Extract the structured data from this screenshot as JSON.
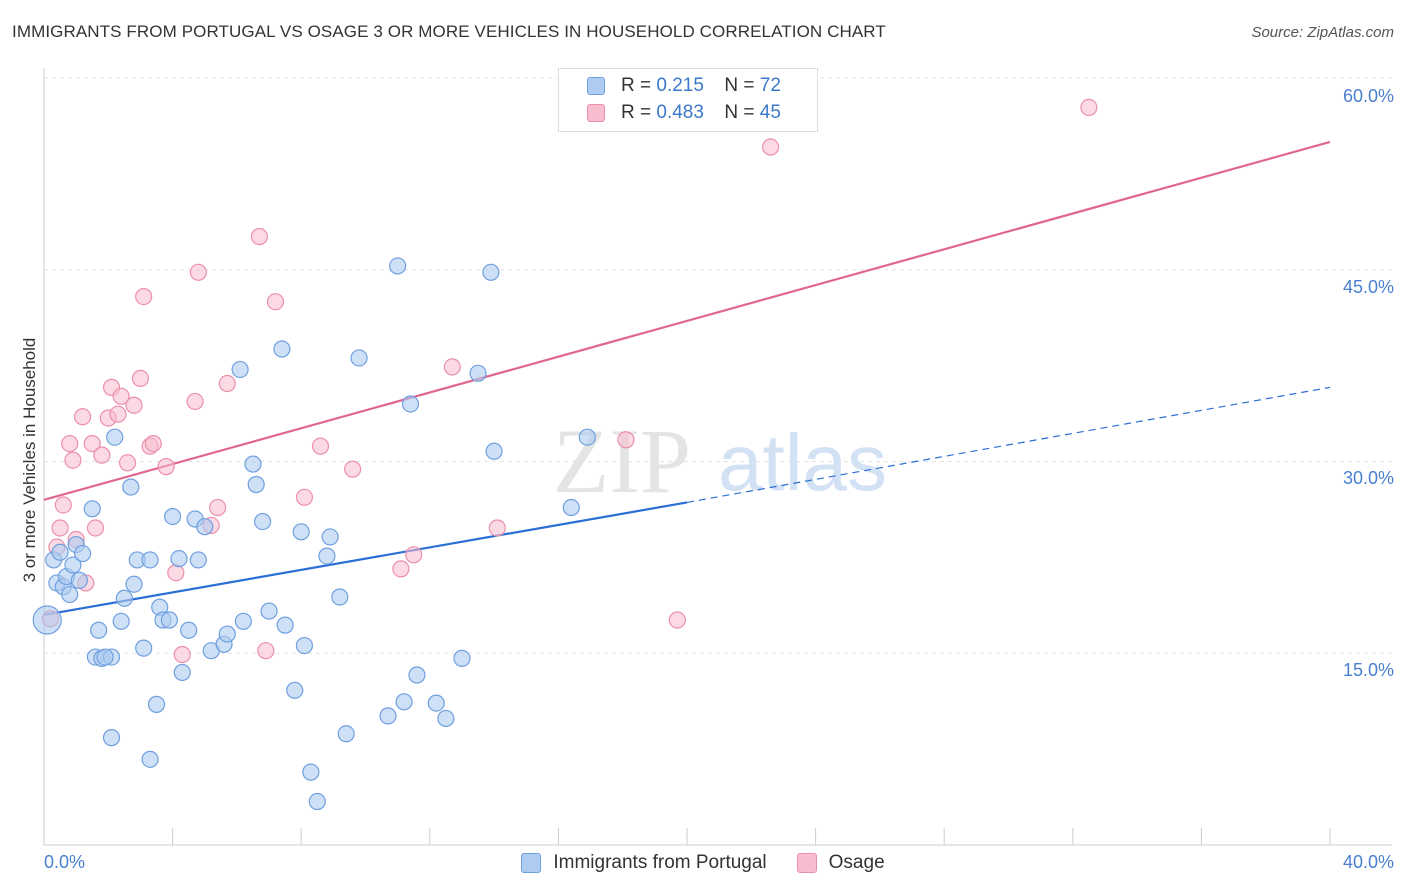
{
  "title": "IMMIGRANTS FROM PORTUGAL VS OSAGE 3 OR MORE VEHICLES IN HOUSEHOLD CORRELATION CHART",
  "source": "Source: ZipAtlas.com",
  "watermark": {
    "zip": "ZIP",
    "atlas": "atlas"
  },
  "legend_top": {
    "rows": [
      {
        "r_label": "R =",
        "r_value": "0.215",
        "n_label": "N =",
        "n_value": "72"
      },
      {
        "r_label": "R =",
        "r_value": "0.483",
        "n_label": "N =",
        "n_value": "45"
      }
    ]
  },
  "legend_bottom": {
    "series1": "Immigrants from Portugal",
    "series2": "Osage"
  },
  "colors": {
    "series1_fill": "#aecbf0",
    "series1_stroke": "#6f9fe0",
    "series1_line": "#2b6fd6",
    "series2_fill": "#f7bccd",
    "series2_stroke": "#ec8fab",
    "series2_line": "#e0668f",
    "tick_label": "#4a7fd0",
    "grid": "#e3e3e3"
  },
  "chart_data": {
    "type": "scatter",
    "title": "IMMIGRANTS FROM PORTUGAL VS OSAGE 3 OR MORE VEHICLES IN HOUSEHOLD CORRELATION CHART",
    "xlabel": "",
    "ylabel": "3 or more Vehicles in Household",
    "xlim": [
      0,
      40
    ],
    "ylim": [
      0,
      60
    ],
    "x_tick_labels": [
      "0.0%",
      "40.0%"
    ],
    "y_ticks": [
      15,
      30,
      45,
      60
    ],
    "y_tick_labels": [
      "15.0%",
      "30.0%",
      "45.0%",
      "60.0%"
    ],
    "grid": true,
    "legend_position": "top-center",
    "series": [
      {
        "name": "Immigrants from Portugal",
        "R": 0.215,
        "N": 72,
        "trend": {
          "x": [
            0,
            20
          ],
          "y": [
            18.0,
            26.8
          ],
          "dashed_to": [
            40,
            35.8
          ]
        },
        "points": [
          [
            0.1,
            17.6
          ],
          [
            0.3,
            22.3
          ],
          [
            0.4,
            20.5
          ],
          [
            0.5,
            22.9
          ],
          [
            0.6,
            20.2
          ],
          [
            0.7,
            21.0
          ],
          [
            0.8,
            19.6
          ],
          [
            0.9,
            21.9
          ],
          [
            1.0,
            23.5
          ],
          [
            1.1,
            20.7
          ],
          [
            1.2,
            22.8
          ],
          [
            1.5,
            26.3
          ],
          [
            1.6,
            14.7
          ],
          [
            1.7,
            16.8
          ],
          [
            1.8,
            14.6
          ],
          [
            2.1,
            14.7
          ],
          [
            2.2,
            31.9
          ],
          [
            2.4,
            17.5
          ],
          [
            2.5,
            19.3
          ],
          [
            2.7,
            28.0
          ],
          [
            2.8,
            20.4
          ],
          [
            2.9,
            22.3
          ],
          [
            3.1,
            15.4
          ],
          [
            3.3,
            22.3
          ],
          [
            3.5,
            11.0
          ],
          [
            3.6,
            18.6
          ],
          [
            3.7,
            17.6
          ],
          [
            3.9,
            17.6
          ],
          [
            4.0,
            25.7
          ],
          [
            4.2,
            22.4
          ],
          [
            4.3,
            13.5
          ],
          [
            4.5,
            16.8
          ],
          [
            4.7,
            25.5
          ],
          [
            4.8,
            22.3
          ],
          [
            5.0,
            24.9
          ],
          [
            5.2,
            15.2
          ],
          [
            5.6,
            15.7
          ],
          [
            5.7,
            16.5
          ],
          [
            6.1,
            37.2
          ],
          [
            6.2,
            17.5
          ],
          [
            6.5,
            29.8
          ],
          [
            6.6,
            28.2
          ],
          [
            6.8,
            25.3
          ],
          [
            7.0,
            18.3
          ],
          [
            7.4,
            38.8
          ],
          [
            7.5,
            17.2
          ],
          [
            7.8,
            12.1
          ],
          [
            8.0,
            24.5
          ],
          [
            8.1,
            15.6
          ],
          [
            8.3,
            5.7
          ],
          [
            8.5,
            3.4
          ],
          [
            8.8,
            22.6
          ],
          [
            8.9,
            24.1
          ],
          [
            9.2,
            19.4
          ],
          [
            9.4,
            8.7
          ],
          [
            9.8,
            38.1
          ],
          [
            10.7,
            10.1
          ],
          [
            11.0,
            45.3
          ],
          [
            11.2,
            11.2
          ],
          [
            11.4,
            34.5
          ],
          [
            11.6,
            13.3
          ],
          [
            12.2,
            11.1
          ],
          [
            12.5,
            9.9
          ],
          [
            13.0,
            14.6
          ],
          [
            13.5,
            36.9
          ],
          [
            13.9,
            44.8
          ],
          [
            14.0,
            30.8
          ],
          [
            16.4,
            26.4
          ],
          [
            16.9,
            31.9
          ],
          [
            2.1,
            8.4
          ],
          [
            3.3,
            6.7
          ],
          [
            1.9,
            14.7
          ]
        ]
      },
      {
        "name": "Osage",
        "R": 0.483,
        "N": 45,
        "trend": {
          "x": [
            0,
            40
          ],
          "y": [
            27.0,
            55.0
          ]
        },
        "points": [
          [
            0.2,
            17.7
          ],
          [
            0.4,
            23.3
          ],
          [
            0.5,
            24.8
          ],
          [
            0.6,
            26.6
          ],
          [
            0.8,
            31.4
          ],
          [
            0.9,
            30.1
          ],
          [
            1.0,
            23.9
          ],
          [
            1.2,
            33.5
          ],
          [
            1.3,
            20.5
          ],
          [
            1.5,
            31.4
          ],
          [
            1.6,
            24.8
          ],
          [
            1.8,
            30.5
          ],
          [
            2.0,
            33.4
          ],
          [
            2.1,
            35.8
          ],
          [
            2.3,
            33.7
          ],
          [
            2.4,
            35.1
          ],
          [
            2.6,
            29.9
          ],
          [
            2.8,
            34.4
          ],
          [
            3.0,
            36.5
          ],
          [
            3.1,
            42.9
          ],
          [
            3.3,
            31.2
          ],
          [
            3.4,
            31.4
          ],
          [
            3.8,
            29.6
          ],
          [
            4.1,
            21.3
          ],
          [
            4.3,
            14.9
          ],
          [
            4.7,
            34.7
          ],
          [
            4.8,
            44.8
          ],
          [
            5.2,
            25.0
          ],
          [
            5.4,
            26.4
          ],
          [
            5.7,
            36.1
          ],
          [
            6.7,
            47.6
          ],
          [
            6.9,
            15.2
          ],
          [
            7.2,
            42.5
          ],
          [
            8.1,
            27.2
          ],
          [
            8.6,
            31.2
          ],
          [
            9.6,
            29.4
          ],
          [
            11.1,
            21.6
          ],
          [
            11.5,
            22.7
          ],
          [
            12.7,
            37.4
          ],
          [
            14.1,
            24.8
          ],
          [
            18.1,
            31.7
          ],
          [
            19.7,
            17.6
          ],
          [
            22.6,
            54.6
          ],
          [
            23.5,
            58.8
          ],
          [
            32.5,
            57.7
          ]
        ]
      }
    ]
  }
}
